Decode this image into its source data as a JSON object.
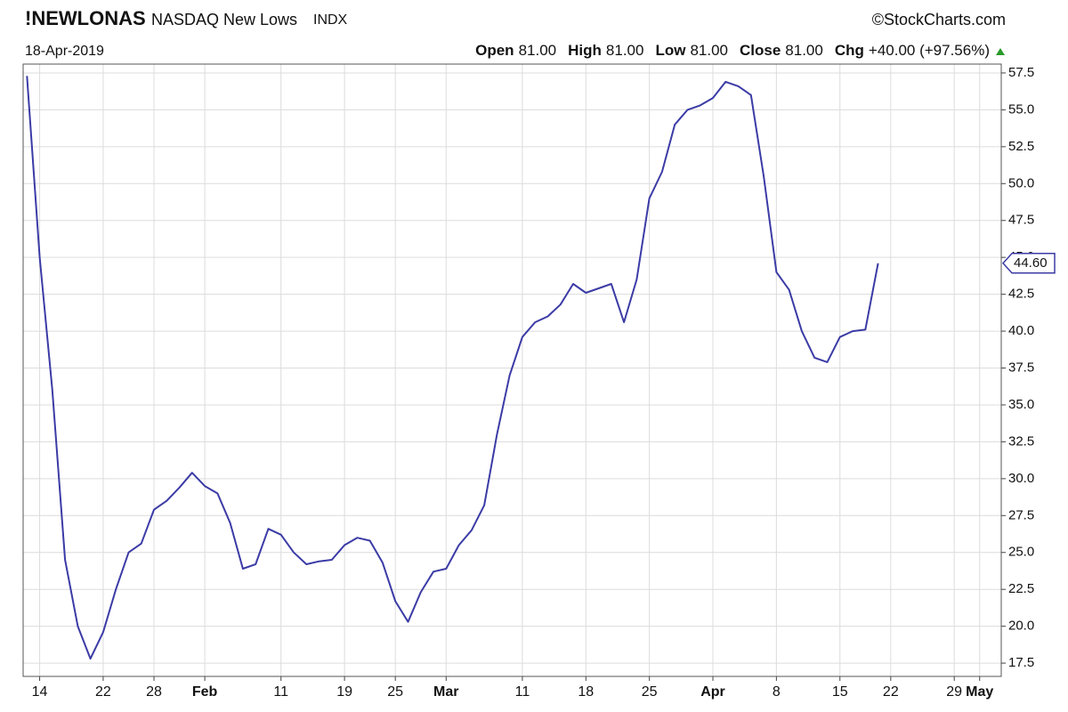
{
  "chart_data": {
    "type": "line",
    "title": "!NEWLONAS",
    "subtitle": "NASDAQ New Lows",
    "exchange": "INDX",
    "source": "©StockCharts.com",
    "date": "18-Apr-2019",
    "quote": [
      {
        "label": "Open",
        "value": "81.00"
      },
      {
        "label": "High",
        "value": "81.00"
      },
      {
        "label": "Low",
        "value": "81.00"
      },
      {
        "label": "Close",
        "value": "81.00"
      },
      {
        "label": "Chg",
        "value": "+40.00 (+97.56%)"
      }
    ],
    "categories": [
      null,
      "14",
      null,
      null,
      null,
      null,
      "22",
      null,
      null,
      null,
      "28",
      null,
      null,
      null,
      "Feb",
      null,
      null,
      null,
      null,
      null,
      "11",
      null,
      null,
      null,
      null,
      "19",
      null,
      null,
      null,
      "25",
      null,
      null,
      null,
      "Mar",
      null,
      null,
      null,
      null,
      null,
      "11",
      null,
      null,
      null,
      null,
      "18",
      null,
      null,
      null,
      null,
      "25",
      null,
      null,
      null,
      null,
      "Apr",
      null,
      null,
      null,
      null,
      "8",
      null,
      null,
      null,
      null,
      "15",
      null,
      null,
      null,
      "22",
      null,
      null,
      null,
      null,
      "29",
      null,
      "May",
      null
    ],
    "series": [
      {
        "name": "!NEWLONAS",
        "color": "#3b3ba6",
        "values": [
          57.3,
          45,
          36,
          24.5,
          20,
          17.8,
          19.6,
          22.5,
          25.0,
          25.6,
          27.9,
          28.5,
          29.4,
          30.4,
          29.5,
          29.0,
          27.0,
          23.9,
          24.2,
          26.6,
          26.2,
          25.0,
          24.2,
          24.4,
          24.5,
          25.5,
          26.0,
          25.8,
          24.3,
          21.7,
          20.3,
          22.3,
          23.7,
          23.9,
          25.5,
          26.5,
          28.2,
          33.0,
          37.0,
          39.6,
          40.6,
          41.0,
          41.8,
          43.2,
          42.6,
          42.9,
          43.2,
          40.6,
          43.5,
          49.0,
          50.8,
          54.0,
          55.0,
          55.3,
          55.8,
          56.9,
          56.6,
          56.0,
          50.5,
          44.0,
          42.8,
          40.0,
          38.2,
          37.9,
          39.6,
          40.0,
          40.1,
          44.6,
          null,
          null,
          null,
          null,
          null,
          null,
          null,
          null,
          null
        ],
        "value_labels": [
          null,
          null,
          null,
          null,
          null,
          null,
          null,
          null,
          null,
          null,
          null,
          null,
          null,
          null,
          null,
          null,
          null,
          null,
          null,
          null,
          null,
          null,
          null,
          null,
          null,
          null,
          null,
          null,
          null,
          null,
          null,
          null,
          null,
          null,
          null,
          null,
          null,
          null,
          null,
          null,
          null,
          null,
          null,
          null,
          null,
          null,
          null,
          null,
          null,
          null,
          null,
          null,
          null,
          null,
          null,
          null,
          null,
          null,
          null,
          null,
          null,
          null,
          null,
          null,
          null,
          null,
          null,
          "44.60",
          null,
          null,
          null,
          null,
          null,
          null,
          null,
          null,
          null
        ]
      }
    ],
    "ylim": [
      16.6,
      58.1
    ],
    "yticks": [
      17.5,
      {
        "value": 20,
        "label": "20.0"
      },
      22.5,
      {
        "value": 25,
        "label": "25.0"
      },
      27.5,
      {
        "value": 30,
        "label": "30.0"
      },
      32.5,
      {
        "value": 35,
        "label": "35.0"
      },
      37.5,
      {
        "value": 40,
        "label": "40.0"
      },
      42.5,
      {
        "value": 45,
        "label": "45.0"
      },
      47.5,
      {
        "value": 50,
        "label": "50.0"
      },
      52.5,
      {
        "value": 55,
        "label": "55.0"
      },
      57.5
    ],
    "grid": true
  }
}
